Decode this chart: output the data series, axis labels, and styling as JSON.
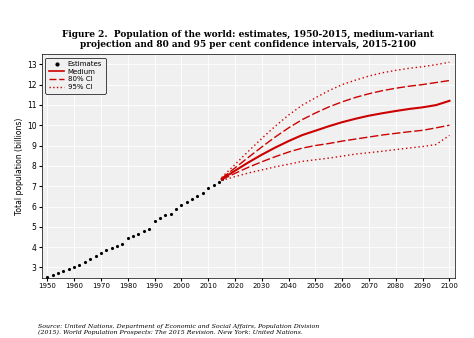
{
  "title": "Figure 2.  Population of the world: estimates, 1950-2015, medium-variant\nprojection and 80 and 95 per cent confidence intervals, 2015-2100",
  "ylabel": "Total population (billions)",
  "source_text": "Source: United Nations, Department of Economic and Social Affairs, Population Division\n(2015). World Population Prospects: The 2015 Revision. New York: United Nations.",
  "xlim": [
    1948,
    2102
  ],
  "ylim": [
    2.5,
    13.5
  ],
  "xticks": [
    1950,
    1960,
    1970,
    1980,
    1990,
    2000,
    2010,
    2020,
    2030,
    2040,
    2050,
    2060,
    2070,
    2080,
    2090,
    2100
  ],
  "yticks": [
    3,
    4,
    5,
    6,
    7,
    8,
    9,
    10,
    11,
    12,
    13
  ],
  "estimates_years": [
    1950,
    1952,
    1954,
    1956,
    1958,
    1960,
    1962,
    1964,
    1966,
    1968,
    1970,
    1972,
    1974,
    1976,
    1978,
    1980,
    1982,
    1984,
    1986,
    1988,
    1990,
    1992,
    1994,
    1996,
    1998,
    2000,
    2002,
    2004,
    2006,
    2008,
    2010,
    2012,
    2014,
    2015
  ],
  "estimates_values": [
    2.53,
    2.63,
    2.73,
    2.83,
    2.93,
    3.02,
    3.14,
    3.27,
    3.4,
    3.55,
    3.69,
    3.84,
    3.96,
    4.07,
    4.18,
    4.43,
    4.55,
    4.67,
    4.78,
    4.9,
    5.31,
    5.44,
    5.56,
    5.64,
    5.9,
    6.09,
    6.22,
    6.38,
    6.52,
    6.66,
    6.92,
    7.06,
    7.22,
    7.35
  ],
  "medium_years": [
    2015,
    2020,
    2025,
    2030,
    2035,
    2040,
    2045,
    2050,
    2055,
    2060,
    2065,
    2070,
    2075,
    2080,
    2085,
    2090,
    2095,
    2100
  ],
  "medium_values": [
    7.35,
    7.76,
    8.17,
    8.55,
    8.9,
    9.22,
    9.51,
    9.73,
    9.95,
    10.15,
    10.32,
    10.47,
    10.59,
    10.7,
    10.8,
    10.88,
    10.99,
    11.2
  ],
  "ci80_upper_values": [
    7.38,
    7.9,
    8.42,
    8.93,
    9.42,
    9.87,
    10.27,
    10.6,
    10.9,
    11.15,
    11.37,
    11.55,
    11.7,
    11.82,
    11.92,
    12.0,
    12.1,
    12.2
  ],
  "ci80_lower_values": [
    7.32,
    7.63,
    7.93,
    8.2,
    8.45,
    8.68,
    8.87,
    9.0,
    9.1,
    9.22,
    9.32,
    9.42,
    9.52,
    9.6,
    9.68,
    9.75,
    9.87,
    10.0
  ],
  "ci95_upper_values": [
    7.42,
    8.07,
    8.72,
    9.35,
    9.95,
    10.5,
    10.98,
    11.35,
    11.7,
    12.0,
    12.22,
    12.42,
    12.58,
    12.7,
    12.8,
    12.88,
    12.98,
    13.1
  ],
  "ci95_lower_values": [
    7.28,
    7.47,
    7.65,
    7.8,
    7.95,
    8.08,
    8.22,
    8.3,
    8.38,
    8.48,
    8.58,
    8.65,
    8.72,
    8.8,
    8.88,
    8.95,
    9.05,
    9.5
  ],
  "estimates_color": "#000000",
  "medium_color": "#cc0000",
  "ci80_color": "#cc0000",
  "ci95_color": "#cc0000",
  "bg_color": "#ffffff",
  "plot_bg_color": "#f0f0f0"
}
